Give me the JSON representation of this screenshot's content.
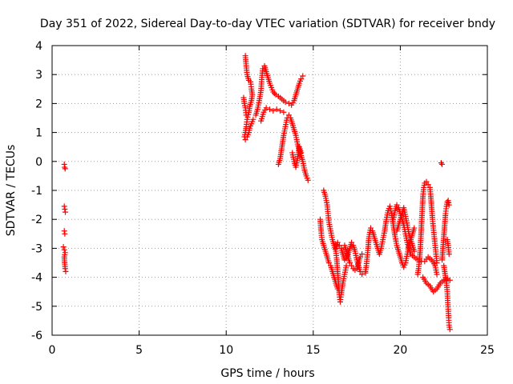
{
  "chart_data": {
    "type": "scatter",
    "title": "Day 351 of 2022, Sidereal Day-to-day VTEC variation (SDTVAR) for receiver bndy",
    "xlabel": "GPS time / hours",
    "ylabel": "SDTVAR / TECUs",
    "xlim": [
      0,
      25
    ],
    "ylim": [
      -6,
      4
    ],
    "xticks": [
      0,
      5,
      10,
      15,
      20,
      25
    ],
    "yticks": [
      -6,
      -5,
      -4,
      -3,
      -2,
      -1,
      0,
      1,
      2,
      3,
      4
    ],
    "xtick_labels": [
      "0",
      "5",
      "10",
      "15",
      "20",
      "25"
    ],
    "ytick_labels": [
      "-6",
      "-5",
      "-4",
      "-3",
      "-2",
      "-1",
      "0",
      "1",
      "2",
      "3",
      "4"
    ],
    "grid": true,
    "marker": "+",
    "color": "#ff0000",
    "series": [
      {
        "name": "SDTVAR",
        "segments": [
          [
            [
              0.7,
              -0.1
            ],
            [
              0.72,
              -0.2
            ],
            [
              0.75,
              -0.25
            ]
          ],
          [
            [
              0.7,
              -1.55
            ],
            [
              0.73,
              -1.65
            ],
            [
              0.76,
              -1.75
            ]
          ],
          [
            [
              0.7,
              -2.4
            ],
            [
              0.73,
              -2.5
            ]
          ],
          [
            [
              0.65,
              -2.95
            ],
            [
              0.7,
              -3.05
            ],
            [
              0.75,
              -3.15
            ],
            [
              0.7,
              -3.3
            ],
            [
              0.72,
              -3.5
            ],
            [
              0.75,
              -3.7
            ],
            [
              0.78,
              -3.8
            ]
          ],
          [
            [
              11.1,
              3.65
            ],
            [
              11.15,
              3.3
            ],
            [
              11.2,
              3.0
            ],
            [
              11.3,
              2.8
            ],
            [
              11.4,
              2.75
            ],
            [
              11.45,
              2.5
            ],
            [
              11.5,
              2.3
            ],
            [
              11.45,
              2.1
            ],
            [
              11.35,
              1.9
            ],
            [
              11.3,
              1.7
            ],
            [
              11.2,
              1.45
            ],
            [
              11.15,
              1.2
            ],
            [
              11.1,
              1.0
            ],
            [
              11.05,
              0.85
            ],
            [
              11.1,
              0.75
            ],
            [
              11.2,
              0.85
            ],
            [
              11.3,
              1.0
            ],
            [
              11.35,
              1.15
            ],
            [
              11.45,
              1.3
            ],
            [
              11.55,
              1.45
            ]
          ],
          [
            [
              11.0,
              2.2
            ],
            [
              11.05,
              2.0
            ],
            [
              11.1,
              1.85
            ],
            [
              11.15,
              1.6
            ]
          ],
          [
            [
              11.7,
              1.6
            ],
            [
              11.8,
              1.8
            ],
            [
              11.9,
              2.1
            ],
            [
              12.0,
              2.45
            ],
            [
              12.05,
              2.9
            ],
            [
              12.1,
              3.2
            ],
            [
              12.2,
              3.3
            ],
            [
              12.3,
              3.1
            ],
            [
              12.4,
              2.9
            ],
            [
              12.5,
              2.7
            ],
            [
              12.6,
              2.55
            ],
            [
              12.7,
              2.4
            ],
            [
              12.85,
              2.3
            ],
            [
              13.0,
              2.25
            ],
            [
              13.2,
              2.15
            ],
            [
              13.4,
              2.05
            ],
            [
              13.6,
              2.0
            ],
            [
              13.75,
              1.95
            ],
            [
              13.9,
              2.1
            ],
            [
              14.0,
              2.3
            ],
            [
              14.1,
              2.5
            ],
            [
              14.2,
              2.7
            ],
            [
              14.3,
              2.85
            ],
            [
              14.4,
              2.95
            ]
          ],
          [
            [
              12.0,
              1.4
            ],
            [
              12.15,
              1.7
            ],
            [
              12.3,
              1.85
            ],
            [
              12.5,
              1.8
            ],
            [
              12.7,
              1.75
            ],
            [
              12.9,
              1.8
            ],
            [
              13.1,
              1.75
            ],
            [
              13.3,
              1.7
            ]
          ],
          [
            [
              13.0,
              -0.1
            ],
            [
              13.1,
              0.1
            ],
            [
              13.2,
              0.5
            ],
            [
              13.3,
              0.9
            ],
            [
              13.4,
              1.2
            ],
            [
              13.5,
              1.5
            ],
            [
              13.6,
              1.6
            ],
            [
              13.7,
              1.5
            ],
            [
              13.8,
              1.3
            ],
            [
              13.9,
              1.1
            ],
            [
              14.0,
              0.9
            ],
            [
              14.1,
              0.6
            ],
            [
              14.2,
              0.4
            ],
            [
              14.3,
              0.2
            ],
            [
              14.4,
              0.0
            ],
            [
              14.5,
              -0.3
            ],
            [
              14.6,
              -0.5
            ],
            [
              14.7,
              -0.65
            ]
          ],
          [
            [
              13.8,
              0.3
            ],
            [
              13.9,
              0.0
            ],
            [
              14.0,
              -0.2
            ],
            [
              14.1,
              0.1
            ],
            [
              14.2,
              0.5
            ],
            [
              14.3,
              0.3
            ]
          ],
          [
            [
              15.6,
              -1.0
            ],
            [
              15.7,
              -1.2
            ],
            [
              15.8,
              -1.5
            ],
            [
              15.85,
              -1.8
            ],
            [
              15.9,
              -2.1
            ],
            [
              16.0,
              -2.4
            ],
            [
              16.1,
              -2.7
            ],
            [
              16.2,
              -2.9
            ],
            [
              16.3,
              -3.1
            ],
            [
              16.35,
              -3.4
            ],
            [
              16.4,
              -3.8
            ],
            [
              16.45,
              -4.2
            ],
            [
              16.5,
              -4.6
            ],
            [
              16.55,
              -4.85
            ],
            [
              16.6,
              -4.6
            ],
            [
              16.7,
              -4.2
            ],
            [
              16.8,
              -3.9
            ],
            [
              16.9,
              -3.6
            ]
          ],
          [
            [
              15.4,
              -2.0
            ],
            [
              15.45,
              -2.4
            ],
            [
              15.5,
              -2.7
            ],
            [
              15.6,
              -2.9
            ],
            [
              15.7,
              -3.1
            ],
            [
              15.8,
              -3.3
            ],
            [
              15.9,
              -3.5
            ],
            [
              16.0,
              -3.6
            ],
            [
              16.1,
              -3.8
            ],
            [
              16.2,
              -4.0
            ],
            [
              16.3,
              -4.2
            ],
            [
              16.4,
              -4.4
            ]
          ],
          [
            [
              16.3,
              -3.0
            ],
            [
              16.4,
              -2.8
            ],
            [
              16.5,
              -2.9
            ],
            [
              16.6,
              -3.0
            ],
            [
              16.7,
              -3.2
            ],
            [
              16.8,
              -3.4
            ],
            [
              17.0,
              -3.2
            ],
            [
              17.1,
              -3.0
            ],
            [
              17.2,
              -2.8
            ],
            [
              17.3,
              -2.9
            ],
            [
              17.4,
              -3.1
            ],
            [
              17.5,
              -3.4
            ],
            [
              17.6,
              -3.6
            ],
            [
              17.7,
              -3.8
            ],
            [
              17.8,
              -3.9
            ],
            [
              18.0,
              -3.85
            ]
          ],
          [
            [
              16.8,
              -2.9
            ],
            [
              16.9,
              -3.1
            ],
            [
              17.0,
              -3.3
            ],
            [
              17.1,
              -3.5
            ],
            [
              17.2,
              -3.6
            ],
            [
              17.3,
              -3.7
            ],
            [
              17.4,
              -3.75
            ],
            [
              17.5,
              -3.7
            ],
            [
              17.6,
              -3.5
            ],
            [
              17.7,
              -3.3
            ],
            [
              17.8,
              -3.2
            ]
          ],
          [
            [
              18.0,
              -3.8
            ],
            [
              18.05,
              -3.6
            ],
            [
              18.1,
              -3.3
            ],
            [
              18.15,
              -3.0
            ],
            [
              18.2,
              -2.6
            ],
            [
              18.3,
              -2.3
            ],
            [
              18.4,
              -2.4
            ],
            [
              18.5,
              -2.6
            ],
            [
              18.6,
              -2.8
            ],
            [
              18.7,
              -3.0
            ],
            [
              18.8,
              -3.2
            ],
            [
              18.9,
              -3.0
            ],
            [
              19.0,
              -2.7
            ],
            [
              19.1,
              -2.4
            ],
            [
              19.2,
              -2.0
            ],
            [
              19.3,
              -1.7
            ],
            [
              19.4,
              -1.55
            ],
            [
              19.5,
              -1.8
            ],
            [
              19.6,
              -2.2
            ],
            [
              19.7,
              -2.6
            ],
            [
              19.8,
              -2.9
            ],
            [
              19.9,
              -3.1
            ],
            [
              20.0,
              -3.3
            ],
            [
              20.1,
              -3.5
            ],
            [
              20.2,
              -3.65
            ],
            [
              20.3,
              -3.5
            ],
            [
              20.4,
              -3.2
            ],
            [
              20.5,
              -2.9
            ],
            [
              20.6,
              -2.7
            ],
            [
              20.7,
              -2.5
            ],
            [
              20.8,
              -2.3
            ]
          ],
          [
            [
              19.6,
              -2.0
            ],
            [
              19.7,
              -1.7
            ],
            [
              19.8,
              -1.5
            ],
            [
              19.9,
              -1.6
            ],
            [
              20.0,
              -1.8
            ],
            [
              20.1,
              -2.0
            ],
            [
              20.2,
              -2.2
            ],
            [
              20.3,
              -2.5
            ],
            [
              20.4,
              -2.8
            ],
            [
              20.5,
              -3.0
            ],
            [
              20.6,
              -3.2
            ],
            [
              20.8,
              -3.3
            ],
            [
              21.0,
              -3.4
            ],
            [
              21.2,
              -3.45
            ],
            [
              21.4,
              -3.45
            ],
            [
              21.6,
              -3.3
            ],
            [
              21.8,
              -3.4
            ],
            [
              22.0,
              -3.6
            ],
            [
              22.1,
              -3.9
            ]
          ],
          [
            [
              19.8,
              -2.4
            ],
            [
              19.9,
              -2.2
            ],
            [
              20.0,
              -2.0
            ],
            [
              20.1,
              -1.8
            ],
            [
              20.2,
              -1.6
            ],
            [
              20.3,
              -1.9
            ],
            [
              20.4,
              -2.2
            ],
            [
              20.5,
              -2.5
            ],
            [
              20.6,
              -2.7
            ],
            [
              20.7,
              -2.9
            ],
            [
              20.8,
              -3.1
            ]
          ],
          [
            [
              21.0,
              -3.9
            ],
            [
              21.05,
              -3.7
            ],
            [
              21.1,
              -3.4
            ],
            [
              21.15,
              -3.0
            ],
            [
              21.2,
              -2.4
            ],
            [
              21.25,
              -1.8
            ],
            [
              21.3,
              -1.2
            ],
            [
              21.35,
              -0.9
            ],
            [
              21.4,
              -0.75
            ],
            [
              21.5,
              -0.7
            ],
            [
              21.6,
              -0.8
            ],
            [
              21.7,
              -0.9
            ],
            [
              21.75,
              -1.2
            ],
            [
              21.8,
              -1.6
            ],
            [
              21.85,
              -2.0
            ],
            [
              21.9,
              -2.3
            ],
            [
              21.95,
              -2.6
            ],
            [
              22.0,
              -2.9
            ],
            [
              22.05,
              -3.2
            ],
            [
              22.1,
              -3.5
            ]
          ],
          [
            [
              21.3,
              -4.0
            ],
            [
              21.5,
              -4.2
            ],
            [
              21.7,
              -4.3
            ],
            [
              21.9,
              -4.5
            ],
            [
              22.1,
              -4.4
            ],
            [
              22.3,
              -4.2
            ],
            [
              22.5,
              -4.1
            ],
            [
              22.7,
              -4.05
            ],
            [
              22.85,
              -4.1
            ]
          ],
          [
            [
              22.35,
              -0.05
            ],
            [
              22.4,
              -0.1
            ]
          ],
          [
            [
              22.4,
              -3.4
            ],
            [
              22.45,
              -3.0
            ],
            [
              22.5,
              -2.6
            ],
            [
              22.55,
              -2.2
            ],
            [
              22.6,
              -1.8
            ],
            [
              22.65,
              -1.55
            ],
            [
              22.7,
              -1.4
            ],
            [
              22.75,
              -1.35
            ],
            [
              22.8,
              -1.5
            ]
          ],
          [
            [
              22.5,
              -3.6
            ],
            [
              22.55,
              -3.8
            ],
            [
              22.6,
              -4.0
            ],
            [
              22.65,
              -4.2
            ],
            [
              22.7,
              -4.5
            ],
            [
              22.72,
              -4.8
            ],
            [
              22.75,
              -5.1
            ],
            [
              22.78,
              -5.4
            ],
            [
              22.8,
              -5.65
            ],
            [
              22.85,
              -5.8
            ]
          ],
          [
            [
              22.7,
              -2.7
            ],
            [
              22.75,
              -2.9
            ],
            [
              22.8,
              -3.2
            ]
          ]
        ]
      }
    ]
  }
}
